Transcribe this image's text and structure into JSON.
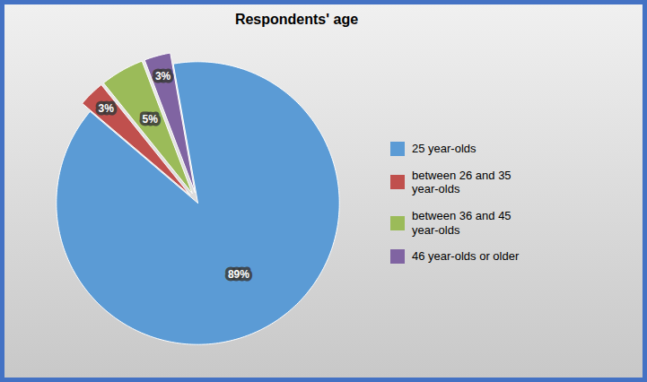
{
  "chart_data": {
    "type": "pie",
    "title": "Respondents' age",
    "categories": [
      "25 year-olds",
      "between 26 and 35\nyear-olds",
      "between 36 and 45\nyear-olds",
      "46 year-olds or older"
    ],
    "values": [
      89,
      3,
      5,
      3
    ],
    "value_labels": [
      "89%",
      "3%",
      "5%",
      "3%"
    ],
    "colors": [
      "#5b9bd5",
      "#c0504d",
      "#9bbb59",
      "#8064a2"
    ],
    "data_labels": true,
    "legend": "right"
  }
}
